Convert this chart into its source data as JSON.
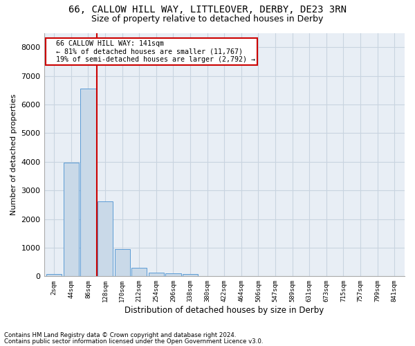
{
  "title1": "66, CALLOW HILL WAY, LITTLEOVER, DERBY, DE23 3RN",
  "title2": "Size of property relative to detached houses in Derby",
  "xlabel": "Distribution of detached houses by size in Derby",
  "ylabel": "Number of detached properties",
  "bar_labels": [
    "2sqm",
    "44sqm",
    "86sqm",
    "128sqm",
    "170sqm",
    "212sqm",
    "254sqm",
    "296sqm",
    "338sqm",
    "380sqm",
    "422sqm",
    "464sqm",
    "506sqm",
    "547sqm",
    "589sqm",
    "631sqm",
    "673sqm",
    "715sqm",
    "757sqm",
    "799sqm",
    "841sqm"
  ],
  "bar_values": [
    80,
    3980,
    6550,
    2620,
    960,
    310,
    130,
    115,
    90,
    0,
    0,
    0,
    0,
    0,
    0,
    0,
    0,
    0,
    0,
    0,
    0
  ],
  "bar_color": "#c9d9e8",
  "bar_edge_color": "#5b9bd5",
  "vline_color": "#cc0000",
  "annotation_text": "  66 CALLOW HILL WAY: 141sqm\n  ← 81% of detached houses are smaller (11,767)\n  19% of semi-detached houses are larger (2,792) →",
  "annotation_box_color": "#cc0000",
  "ylim": [
    0,
    8500
  ],
  "yticks": [
    0,
    1000,
    2000,
    3000,
    4000,
    5000,
    6000,
    7000,
    8000
  ],
  "grid_color": "#c8d4e0",
  "bg_color": "#e8eef5",
  "footer1": "Contains HM Land Registry data © Crown copyright and database right 2024.",
  "footer2": "Contains public sector information licensed under the Open Government Licence v3.0.",
  "title1_fontsize": 10,
  "title2_fontsize": 9
}
